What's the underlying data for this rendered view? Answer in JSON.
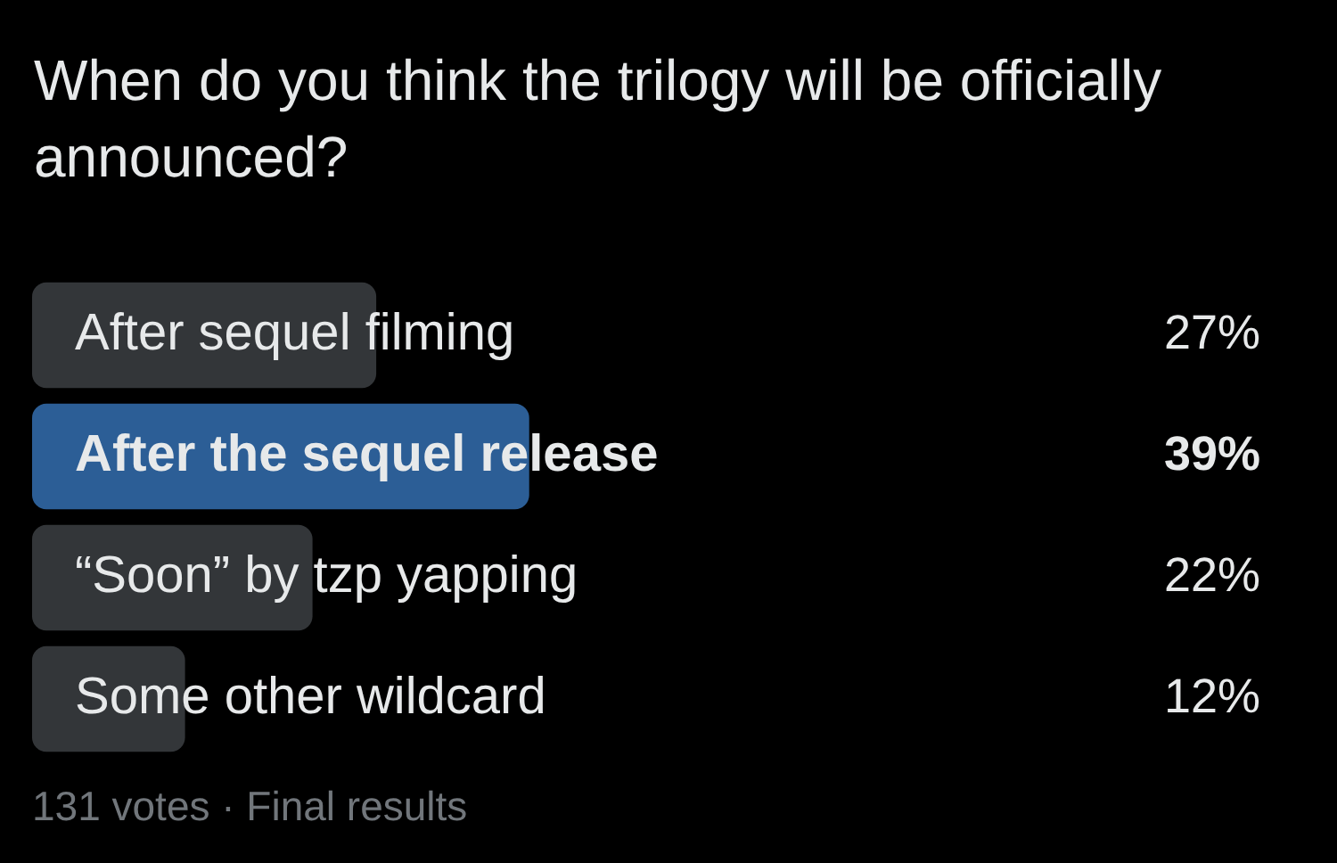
{
  "chart_data": {
    "type": "bar",
    "orientation": "horizontal",
    "title": "When do you think the trilogy will be officially announced?",
    "categories": [
      "After sequel filming",
      "After the sequel release",
      "“Soon” by tzp yapping",
      "Some other wildcard"
    ],
    "values": [
      27,
      39,
      22,
      12
    ],
    "colors": [
      "#333639",
      "#2c5e96",
      "#333639",
      "#333639"
    ],
    "value_labels": [
      "27%",
      "39%",
      "22%",
      "12%"
    ],
    "tick_labels": "y",
    "annotations": [
      "131 votes · Final results"
    ]
  }
}
